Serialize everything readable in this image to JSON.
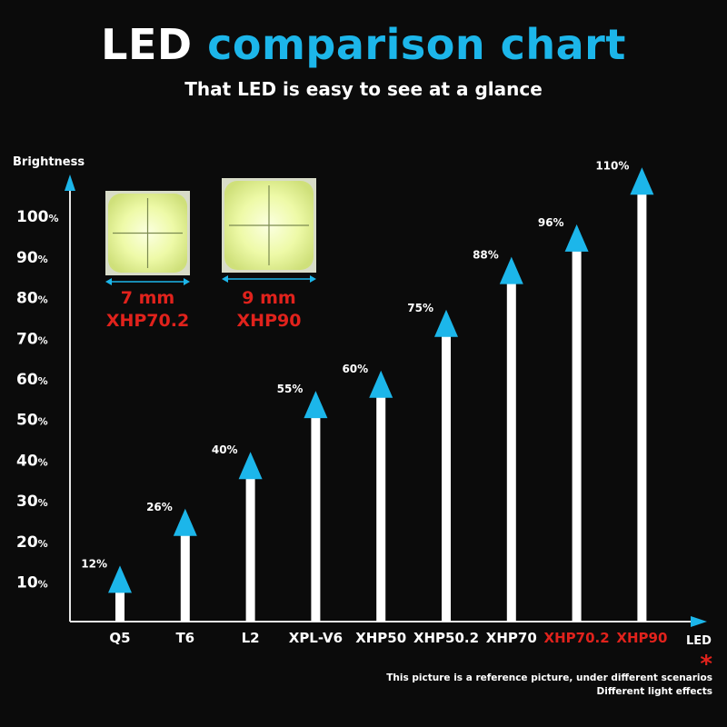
{
  "title": {
    "part1": "LED",
    "part2": "comparison chart",
    "subtitle": "That LED is easy to see at a glance"
  },
  "colors": {
    "accent": "#1cb6ea",
    "highlight": "#e0221c",
    "bar": "#ffffff",
    "background": "#0b0b0b"
  },
  "chips": [
    {
      "size": "7 mm",
      "model": "XHP70.2"
    },
    {
      "size": "9 mm",
      "model": "XHP90"
    }
  ],
  "footnote": {
    "marker": "*",
    "line1": "This picture is a reference picture, under different scenarios",
    "line2": "Different light effects"
  },
  "chart_data": {
    "type": "bar",
    "ylabel": "Brightness",
    "xlabel": "LED",
    "ylim": [
      0,
      110
    ],
    "y_ticks": [
      10,
      20,
      30,
      40,
      50,
      60,
      70,
      80,
      90,
      100
    ],
    "y_tick_unit": "%",
    "categories": [
      "Q5",
      "T6",
      "L2",
      "XPL-V6",
      "XHP50",
      "XHP50.2",
      "XHP70",
      "XHP70.2",
      "XHP90"
    ],
    "values": [
      12,
      26,
      40,
      55,
      60,
      75,
      88,
      96,
      110
    ],
    "data_labels": [
      "12%",
      "26%",
      "40%",
      "55%",
      "60%",
      "75%",
      "88%",
      "96%",
      "110%"
    ],
    "highlighted_categories": [
      "XHP70.2",
      "XHP90"
    ],
    "grid": false
  }
}
